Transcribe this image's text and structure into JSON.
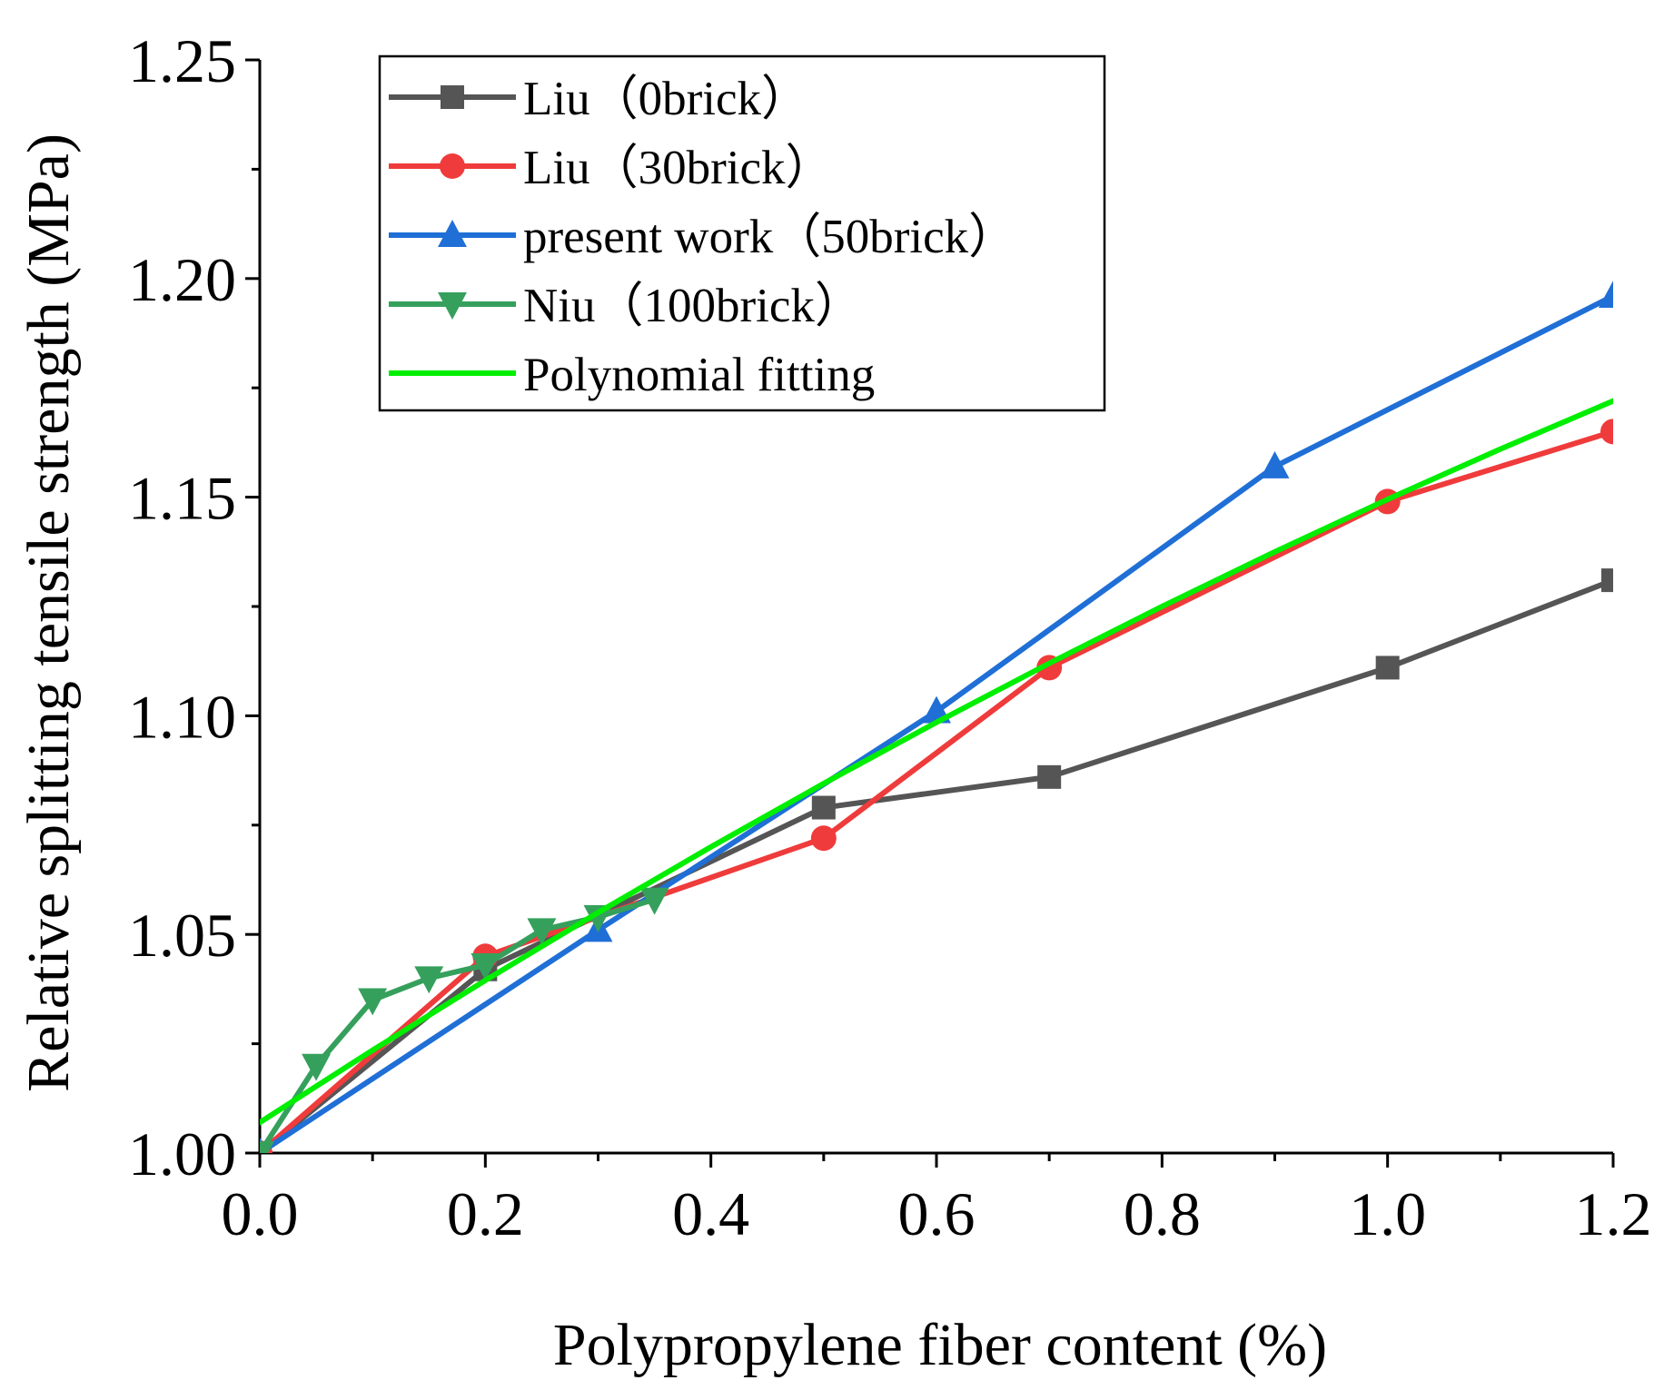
{
  "chart_data": {
    "type": "line",
    "title": "",
    "xlabel": "Polypropylene fiber content (%)",
    "ylabel": "Relative splitting tensile strength (MPa)",
    "xlim": [
      0,
      1.2
    ],
    "ylim": [
      1.0,
      1.25
    ],
    "x_ticks": [
      0.0,
      0.2,
      0.4,
      0.6,
      0.8,
      1.0,
      1.2
    ],
    "x_tick_labels": [
      "0.0",
      "0.2",
      "0.4",
      "0.6",
      "0.8",
      "1.0",
      "1.2"
    ],
    "y_ticks": [
      1.0,
      1.05,
      1.1,
      1.15,
      1.2,
      1.25
    ],
    "y_tick_labels": [
      "1.00",
      "1.05",
      "1.10",
      "1.15",
      "1.20",
      "1.25"
    ],
    "grid": false,
    "legend_position": "top-left",
    "series": [
      {
        "name": "Liu（0brick）",
        "color": "#555555",
        "marker": "square",
        "x": [
          0.0,
          0.2,
          0.5,
          0.7,
          1.0,
          1.2
        ],
        "y": [
          1.0,
          1.042,
          1.079,
          1.086,
          1.111,
          1.131
        ]
      },
      {
        "name": "Liu（30brick）",
        "color": "#ef3b3b",
        "marker": "circle",
        "x": [
          0.0,
          0.2,
          0.5,
          0.7,
          1.0,
          1.2
        ],
        "y": [
          1.0,
          1.045,
          1.072,
          1.111,
          1.149,
          1.165
        ]
      },
      {
        "name": "present work（50brick）",
        "color": "#1f6fd6",
        "marker": "triangle-up",
        "x": [
          0.0,
          0.3,
          0.6,
          0.9,
          1.2
        ],
        "y": [
          1.0,
          1.051,
          1.101,
          1.157,
          1.196
        ]
      },
      {
        "name": "Niu（100brick）",
        "color": "#35a05c",
        "marker": "triangle-down",
        "x": [
          0.0,
          0.05,
          0.1,
          0.15,
          0.2,
          0.25,
          0.3,
          0.35
        ],
        "y": [
          1.0,
          1.02,
          1.035,
          1.04,
          1.043,
          1.051,
          1.054,
          1.058
        ]
      },
      {
        "name": "Polynomial fitting",
        "color": "#00ee00",
        "marker": "none",
        "x": [
          0.0,
          0.1,
          0.2,
          0.3,
          0.4,
          0.5,
          0.6,
          0.7,
          0.8,
          0.9,
          1.0,
          1.1,
          1.2
        ],
        "y": [
          1.007,
          1.0235,
          1.0395,
          1.055,
          1.07,
          1.0845,
          1.0985,
          1.112,
          1.125,
          1.1375,
          1.1495,
          1.161,
          1.172
        ]
      }
    ]
  }
}
